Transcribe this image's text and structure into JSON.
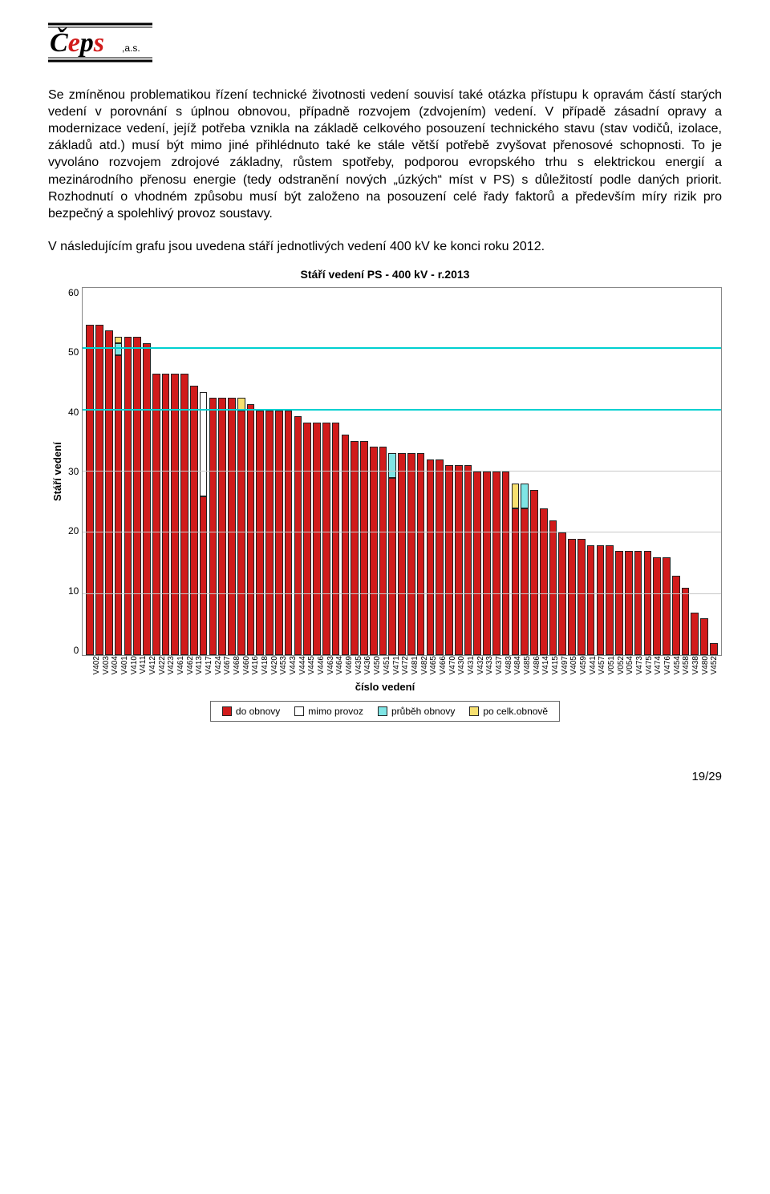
{
  "logo_text": "Čeps",
  "logo_suffix": ",a.s.",
  "paragraph1": "Se zmíněnou problematikou řízení technické životnosti vedení souvisí také otázka přístupu k opravám částí starých vedení v porovnání s úplnou obnovou, případně rozvojem (zdvojením) vedení.   V případě zásadní opravy a modernizace vedení, jejíž potřeba vznikla na základě celkového posouzení technického stavu (stav vodičů, izolace, základů atd.) musí být mimo jiné přihlédnuto také ke stále větší potřebě zvyšovat přenosové schopnosti. To je vyvoláno rozvojem zdrojové základny, růstem spotřeby, podporou evropského trhu s elektrickou energií a mezinárodního přenosu energie (tedy odstranění nových „úzkých“ míst v PS) s důležitostí podle daných priorit. Rozhodnutí o vhodném způsobu musí být založeno na posouzení celé řady faktorů a především míry rizik pro bezpečný a spolehlivý provoz soustavy.",
  "paragraph2": "V následujícím grafu jsou uvedena stáří jednotlivých vedení 400 kV ke konci roku 2012.",
  "chart": {
    "title": "Stáří vedení PS - 400 kV - r.2013",
    "ylabel": "Stáří vedení",
    "xlabel": "číslo vedení",
    "ymax": 60,
    "yticks": [
      60,
      50,
      40,
      30,
      20,
      10,
      0
    ],
    "grid_color": "#c8c8c8",
    "ref_line_color": "#00d0d0",
    "ref_lines": [
      50,
      40
    ],
    "colors": {
      "do_obnovy": "#d11b1b",
      "mimo_provoz": "#ffffff",
      "prubeh_obnovy": "#7fe5e5",
      "po_celk_obnove": "#f7e070"
    },
    "categories": [
      "V402",
      "V403",
      "V404",
      "V401",
      "V410",
      "V411",
      "V412",
      "V422",
      "V423",
      "V461",
      "V462",
      "V413",
      "V417",
      "V424",
      "V467",
      "V468",
      "V460",
      "V416",
      "V418",
      "V420",
      "V453",
      "V443",
      "V444",
      "V445",
      "V446",
      "V463",
      "V464",
      "V469",
      "V435",
      "V436",
      "V450",
      "V451",
      "V471",
      "V472",
      "V481",
      "V482",
      "V465",
      "V466",
      "V470",
      "V430",
      "V431",
      "V432",
      "V433",
      "V437",
      "V483",
      "V484",
      "V485",
      "V486",
      "V414",
      "V415",
      "V497",
      "V405",
      "V459",
      "V441",
      "V457",
      "V051",
      "V052",
      "V054",
      "V473",
      "V475",
      "V474",
      "V476",
      "V454",
      "V458",
      "V438",
      "V480",
      "V452"
    ],
    "bars": [
      {
        "h": 54,
        "segs": [
          {
            "t": "d",
            "h": 54
          }
        ]
      },
      {
        "h": 54,
        "segs": [
          {
            "t": "d",
            "h": 54
          }
        ]
      },
      {
        "h": 53,
        "segs": [
          {
            "t": "d",
            "h": 53
          }
        ]
      },
      {
        "h": 52,
        "segs": [
          {
            "t": "d",
            "h": 49
          },
          {
            "t": "p",
            "h": 2
          },
          {
            "t": "o",
            "h": 1
          }
        ]
      },
      {
        "h": 52,
        "segs": [
          {
            "t": "d",
            "h": 52
          }
        ]
      },
      {
        "h": 52,
        "segs": [
          {
            "t": "d",
            "h": 52
          }
        ]
      },
      {
        "h": 51,
        "segs": [
          {
            "t": "d",
            "h": 51
          }
        ]
      },
      {
        "h": 46,
        "segs": [
          {
            "t": "d",
            "h": 46
          }
        ]
      },
      {
        "h": 46,
        "segs": [
          {
            "t": "d",
            "h": 46
          }
        ]
      },
      {
        "h": 46,
        "segs": [
          {
            "t": "d",
            "h": 46
          }
        ]
      },
      {
        "h": 46,
        "segs": [
          {
            "t": "d",
            "h": 46
          }
        ]
      },
      {
        "h": 44,
        "segs": [
          {
            "t": "d",
            "h": 44
          }
        ]
      },
      {
        "h": 43,
        "segs": [
          {
            "t": "d",
            "h": 26
          },
          {
            "t": "m",
            "h": 17
          }
        ]
      },
      {
        "h": 42,
        "segs": [
          {
            "t": "d",
            "h": 42
          }
        ]
      },
      {
        "h": 42,
        "segs": [
          {
            "t": "d",
            "h": 42
          }
        ]
      },
      {
        "h": 42,
        "segs": [
          {
            "t": "d",
            "h": 42
          }
        ]
      },
      {
        "h": 42,
        "segs": [
          {
            "t": "d",
            "h": 40
          },
          {
            "t": "o",
            "h": 2
          }
        ]
      },
      {
        "h": 41,
        "segs": [
          {
            "t": "d",
            "h": 41
          }
        ]
      },
      {
        "h": 40,
        "segs": [
          {
            "t": "d",
            "h": 40
          }
        ]
      },
      {
        "h": 40,
        "segs": [
          {
            "t": "d",
            "h": 40
          }
        ]
      },
      {
        "h": 40,
        "segs": [
          {
            "t": "d",
            "h": 40
          }
        ]
      },
      {
        "h": 40,
        "segs": [
          {
            "t": "d",
            "h": 40
          }
        ]
      },
      {
        "h": 39,
        "segs": [
          {
            "t": "d",
            "h": 39
          }
        ]
      },
      {
        "h": 38,
        "segs": [
          {
            "t": "d",
            "h": 38
          }
        ]
      },
      {
        "h": 38,
        "segs": [
          {
            "t": "d",
            "h": 38
          }
        ]
      },
      {
        "h": 38,
        "segs": [
          {
            "t": "d",
            "h": 38
          }
        ]
      },
      {
        "h": 38,
        "segs": [
          {
            "t": "d",
            "h": 38
          }
        ]
      },
      {
        "h": 36,
        "segs": [
          {
            "t": "d",
            "h": 36
          }
        ]
      },
      {
        "h": 35,
        "segs": [
          {
            "t": "d",
            "h": 35
          }
        ]
      },
      {
        "h": 35,
        "segs": [
          {
            "t": "d",
            "h": 35
          }
        ]
      },
      {
        "h": 34,
        "segs": [
          {
            "t": "d",
            "h": 34
          }
        ]
      },
      {
        "h": 34,
        "segs": [
          {
            "t": "d",
            "h": 34
          }
        ]
      },
      {
        "h": 33,
        "segs": [
          {
            "t": "d",
            "h": 29
          },
          {
            "t": "p",
            "h": 4
          }
        ]
      },
      {
        "h": 33,
        "segs": [
          {
            "t": "d",
            "h": 33
          }
        ]
      },
      {
        "h": 33,
        "segs": [
          {
            "t": "d",
            "h": 33
          }
        ]
      },
      {
        "h": 33,
        "segs": [
          {
            "t": "d",
            "h": 33
          }
        ]
      },
      {
        "h": 32,
        "segs": [
          {
            "t": "d",
            "h": 32
          }
        ]
      },
      {
        "h": 32,
        "segs": [
          {
            "t": "d",
            "h": 32
          }
        ]
      },
      {
        "h": 31,
        "segs": [
          {
            "t": "d",
            "h": 31
          }
        ]
      },
      {
        "h": 31,
        "segs": [
          {
            "t": "d",
            "h": 31
          }
        ]
      },
      {
        "h": 31,
        "segs": [
          {
            "t": "d",
            "h": 31
          }
        ]
      },
      {
        "h": 30,
        "segs": [
          {
            "t": "d",
            "h": 30
          }
        ]
      },
      {
        "h": 30,
        "segs": [
          {
            "t": "d",
            "h": 30
          }
        ]
      },
      {
        "h": 30,
        "segs": [
          {
            "t": "d",
            "h": 30
          }
        ]
      },
      {
        "h": 30,
        "segs": [
          {
            "t": "d",
            "h": 30
          }
        ]
      },
      {
        "h": 28,
        "segs": [
          {
            "t": "d",
            "h": 24
          },
          {
            "t": "o",
            "h": 4
          }
        ]
      },
      {
        "h": 28,
        "segs": [
          {
            "t": "d",
            "h": 24
          },
          {
            "t": "p",
            "h": 4
          }
        ]
      },
      {
        "h": 27,
        "segs": [
          {
            "t": "d",
            "h": 27
          }
        ]
      },
      {
        "h": 24,
        "segs": [
          {
            "t": "d",
            "h": 24
          }
        ]
      },
      {
        "h": 22,
        "segs": [
          {
            "t": "d",
            "h": 22
          }
        ]
      },
      {
        "h": 20,
        "segs": [
          {
            "t": "d",
            "h": 20
          }
        ]
      },
      {
        "h": 19,
        "segs": [
          {
            "t": "d",
            "h": 19
          }
        ]
      },
      {
        "h": 19,
        "segs": [
          {
            "t": "d",
            "h": 19
          }
        ]
      },
      {
        "h": 18,
        "segs": [
          {
            "t": "d",
            "h": 18
          }
        ]
      },
      {
        "h": 18,
        "segs": [
          {
            "t": "d",
            "h": 18
          }
        ]
      },
      {
        "h": 18,
        "segs": [
          {
            "t": "d",
            "h": 18
          }
        ]
      },
      {
        "h": 17,
        "segs": [
          {
            "t": "d",
            "h": 17
          }
        ]
      },
      {
        "h": 17,
        "segs": [
          {
            "t": "d",
            "h": 17
          }
        ]
      },
      {
        "h": 17,
        "segs": [
          {
            "t": "d",
            "h": 17
          }
        ]
      },
      {
        "h": 17,
        "segs": [
          {
            "t": "d",
            "h": 17
          }
        ]
      },
      {
        "h": 16,
        "segs": [
          {
            "t": "d",
            "h": 16
          }
        ]
      },
      {
        "h": 16,
        "segs": [
          {
            "t": "d",
            "h": 16
          }
        ]
      },
      {
        "h": 13,
        "segs": [
          {
            "t": "d",
            "h": 13
          }
        ]
      },
      {
        "h": 11,
        "segs": [
          {
            "t": "d",
            "h": 11
          }
        ]
      },
      {
        "h": 7,
        "segs": [
          {
            "t": "d",
            "h": 7
          }
        ]
      },
      {
        "h": 6,
        "segs": [
          {
            "t": "d",
            "h": 6
          }
        ]
      },
      {
        "h": 2,
        "segs": [
          {
            "t": "d",
            "h": 2
          }
        ]
      }
    ],
    "legend": [
      {
        "key": "d",
        "label": "do obnovy"
      },
      {
        "key": "m",
        "label": "mimo provoz"
      },
      {
        "key": "p",
        "label": "průběh obnovy"
      },
      {
        "key": "o",
        "label": "po celk.obnově"
      }
    ]
  },
  "page_number": "19/29"
}
